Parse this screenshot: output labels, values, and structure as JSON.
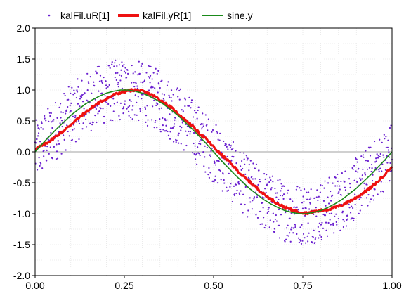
{
  "chart_data": {
    "type": "line",
    "title": "",
    "xlabel": "",
    "ylabel": "",
    "xlim": [
      0,
      1
    ],
    "ylim": [
      -2,
      2
    ],
    "grid": true,
    "legend_position": "top",
    "x_ticks": [
      "0.00",
      "0.25",
      "0.50",
      "0.75",
      "1.00"
    ],
    "y_ticks": [
      "2.0",
      "1.5",
      "1.0",
      "0.5",
      "0.0",
      "-0.5",
      "-1.0",
      "-1.5",
      "-2.0"
    ],
    "series": [
      {
        "name": "kalFil.uR[1]",
        "style": "scatter",
        "color": "#6a1fd0",
        "description_values": "noisy samples of sin(2*pi*t), noise amplitude about ±0.5",
        "x": [
          0.0,
          0.02,
          0.04,
          0.06,
          0.08,
          0.1,
          0.12,
          0.14,
          0.16,
          0.18,
          0.2,
          0.22,
          0.24,
          0.26,
          0.28,
          0.3,
          0.32,
          0.34,
          0.36,
          0.38,
          0.4,
          0.42,
          0.44,
          0.46,
          0.48,
          0.5,
          0.52,
          0.54,
          0.56,
          0.58,
          0.6,
          0.62,
          0.64,
          0.66,
          0.68,
          0.7,
          0.72,
          0.74,
          0.76,
          0.78,
          0.8,
          0.82,
          0.84,
          0.86,
          0.88,
          0.9,
          0.92,
          0.94,
          0.96,
          0.98,
          1.0
        ],
        "y": [
          0.0,
          0.13,
          0.25,
          0.37,
          0.48,
          0.59,
          0.68,
          0.77,
          0.84,
          0.9,
          0.95,
          0.98,
          1.0,
          1.0,
          0.98,
          0.95,
          0.9,
          0.84,
          0.77,
          0.68,
          0.59,
          0.48,
          0.37,
          0.25,
          0.13,
          0.0,
          -0.13,
          -0.25,
          -0.37,
          -0.48,
          -0.59,
          -0.68,
          -0.77,
          -0.84,
          -0.9,
          -0.95,
          -0.98,
          -1.0,
          -1.0,
          -0.98,
          -0.95,
          -0.9,
          -0.84,
          -0.77,
          -0.68,
          -0.59,
          -0.48,
          -0.37,
          -0.25,
          -0.13,
          0.0
        ],
        "noise": 0.5
      },
      {
        "name": "kalFil.yR[1]",
        "style": "line",
        "color": "#ee1111",
        "x": [
          0.0,
          0.02,
          0.04,
          0.06,
          0.08,
          0.1,
          0.12,
          0.14,
          0.16,
          0.18,
          0.2,
          0.22,
          0.24,
          0.26,
          0.28,
          0.3,
          0.32,
          0.34,
          0.36,
          0.38,
          0.4,
          0.42,
          0.44,
          0.46,
          0.48,
          0.5,
          0.52,
          0.54,
          0.56,
          0.58,
          0.6,
          0.62,
          0.64,
          0.66,
          0.68,
          0.7,
          0.72,
          0.74,
          0.76,
          0.78,
          0.8,
          0.82,
          0.84,
          0.86,
          0.88,
          0.9,
          0.92,
          0.94,
          0.96,
          0.98,
          1.0
        ],
        "y": [
          0.05,
          0.1,
          0.17,
          0.26,
          0.34,
          0.44,
          0.54,
          0.63,
          0.72,
          0.8,
          0.86,
          0.92,
          0.96,
          0.99,
          1.0,
          0.98,
          0.94,
          0.88,
          0.8,
          0.72,
          0.62,
          0.52,
          0.42,
          0.3,
          0.2,
          0.08,
          -0.04,
          -0.14,
          -0.26,
          -0.38,
          -0.48,
          -0.58,
          -0.68,
          -0.76,
          -0.84,
          -0.9,
          -0.94,
          -0.97,
          -0.99,
          -0.97,
          -0.95,
          -0.93,
          -0.9,
          -0.86,
          -0.8,
          -0.74,
          -0.66,
          -0.58,
          -0.48,
          -0.36,
          -0.24
        ]
      },
      {
        "name": "sine.y",
        "style": "line",
        "color": "#1a8a1a",
        "x": [
          0.0,
          0.02,
          0.04,
          0.06,
          0.08,
          0.1,
          0.12,
          0.14,
          0.16,
          0.18,
          0.2,
          0.22,
          0.24,
          0.26,
          0.28,
          0.3,
          0.32,
          0.34,
          0.36,
          0.38,
          0.4,
          0.42,
          0.44,
          0.46,
          0.48,
          0.5,
          0.52,
          0.54,
          0.56,
          0.58,
          0.6,
          0.62,
          0.64,
          0.66,
          0.68,
          0.7,
          0.72,
          0.74,
          0.76,
          0.78,
          0.8,
          0.82,
          0.84,
          0.86,
          0.88,
          0.9,
          0.92,
          0.94,
          0.96,
          0.98,
          1.0
        ],
        "y": [
          0.0,
          0.13,
          0.25,
          0.37,
          0.48,
          0.59,
          0.68,
          0.77,
          0.84,
          0.9,
          0.95,
          0.98,
          1.0,
          1.0,
          0.98,
          0.95,
          0.9,
          0.84,
          0.77,
          0.68,
          0.59,
          0.48,
          0.37,
          0.25,
          0.13,
          0.0,
          -0.13,
          -0.25,
          -0.37,
          -0.48,
          -0.59,
          -0.68,
          -0.77,
          -0.84,
          -0.9,
          -0.95,
          -0.98,
          -1.0,
          -1.0,
          -0.98,
          -0.95,
          -0.9,
          -0.84,
          -0.77,
          -0.68,
          -0.59,
          -0.48,
          -0.37,
          -0.25,
          -0.13,
          0.0
        ]
      }
    ]
  }
}
